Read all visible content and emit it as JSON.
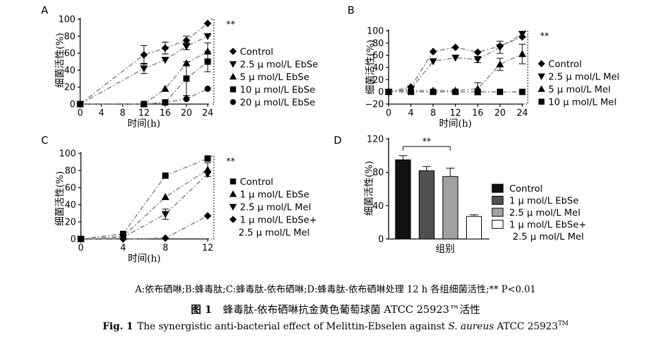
{
  "chart_data": [
    {
      "panel": "A",
      "type": "line",
      "xlabel": "时间(h)",
      "ylabel": "细菌活性(%)",
      "xlim": [
        0,
        24
      ],
      "ylim": [
        0,
        100
      ],
      "xticks": [
        0,
        4,
        8,
        12,
        16,
        20,
        24
      ],
      "yticks": [
        0,
        20,
        40,
        60,
        80,
        100
      ],
      "significance": "**",
      "legend_position": "right",
      "series": [
        {
          "name": "Control",
          "marker": "diamond",
          "x": [
            0,
            12,
            16,
            20,
            24
          ],
          "y": [
            0,
            58,
            66,
            75,
            95
          ],
          "err": [
            0,
            11,
            7,
            5,
            0
          ]
        },
        {
          "name": "2.5 μ mol/L EbSe",
          "marker": "triangle-down",
          "x": [
            0,
            12,
            16,
            20,
            24
          ],
          "y": [
            0,
            42,
            52,
            68,
            80
          ],
          "err": [
            0,
            6,
            0,
            4,
            0
          ]
        },
        {
          "name": "5 μ mol/L EbSe",
          "marker": "triangle-up",
          "x": [
            0,
            12,
            16,
            20,
            24
          ],
          "y": [
            0,
            0,
            18,
            48,
            62
          ],
          "err": [
            0,
            0,
            0,
            0,
            10
          ]
        },
        {
          "name": "10 μ mol/L EbSe",
          "marker": "square",
          "x": [
            0,
            12,
            16,
            20,
            24
          ],
          "y": [
            0,
            0,
            2,
            30,
            50
          ],
          "err": [
            0,
            0,
            0,
            20,
            12
          ]
        },
        {
          "name": "20 μ mol/L EbSe",
          "marker": "circle",
          "x": [
            0,
            12,
            16,
            20,
            24
          ],
          "y": [
            0,
            0,
            2,
            6,
            18
          ],
          "err": [
            0,
            0,
            0,
            0,
            0
          ]
        }
      ]
    },
    {
      "panel": "B",
      "type": "line",
      "xlabel": "时间(h)",
      "ylabel": "细菌活性(%)",
      "xlim": [
        0,
        24
      ],
      "ylim": [
        -20,
        100
      ],
      "xticks": [
        0,
        4,
        8,
        12,
        16,
        20,
        24
      ],
      "yticks": [
        -20,
        0,
        20,
        40,
        60,
        80,
        100
      ],
      "significance": "**",
      "legend_position": "right",
      "series": [
        {
          "name": "Control",
          "marker": "diamond",
          "x": [
            0,
            4,
            8,
            12,
            16,
            20,
            24
          ],
          "y": [
            0,
            8,
            66,
            73,
            65,
            75,
            90
          ],
          "err": [
            0,
            0,
            0,
            0,
            0,
            0,
            0
          ]
        },
        {
          "name": "2.5 μ mol/L Mel",
          "marker": "triangle-down",
          "x": [
            0,
            4,
            8,
            12,
            16,
            20,
            24
          ],
          "y": [
            0,
            5,
            50,
            56,
            53,
            73,
            95
          ],
          "err": [
            0,
            0,
            0,
            0,
            5,
            10,
            0
          ]
        },
        {
          "name": "5 μ mol/L Mel",
          "marker": "triangle-up",
          "x": [
            0,
            4,
            8,
            12,
            16,
            20,
            24
          ],
          "y": [
            0,
            2,
            2,
            2,
            5,
            45,
            62
          ],
          "err": [
            0,
            0,
            0,
            0,
            10,
            10,
            16
          ]
        },
        {
          "name": "10 μ mol/L Mel",
          "marker": "square",
          "x": [
            0,
            4,
            8,
            12,
            16,
            20,
            24
          ],
          "y": [
            0,
            0,
            0,
            0,
            0,
            0,
            0
          ],
          "err": [
            0,
            0,
            0,
            0,
            0,
            0,
            0
          ]
        }
      ]
    },
    {
      "panel": "C",
      "type": "line",
      "xlabel": "时间(h)",
      "ylabel": "细菌活性(%)",
      "xlim": [
        0,
        12
      ],
      "ylim": [
        0,
        100
      ],
      "xticks": [
        0,
        4,
        8,
        12
      ],
      "yticks": [
        0,
        20,
        40,
        60,
        80,
        100
      ],
      "significance": "**",
      "legend_position": "right",
      "series": [
        {
          "name": "Control",
          "marker": "square",
          "x": [
            0,
            4,
            8,
            12
          ],
          "y": [
            0,
            6,
            74,
            94
          ],
          "err": [
            0,
            0,
            0,
            0
          ]
        },
        {
          "name": "1 μ mol/L EbSe",
          "marker": "triangle-up",
          "x": [
            0,
            4,
            8,
            12
          ],
          "y": [
            0,
            3,
            49,
            81
          ],
          "err": [
            0,
            0,
            0,
            8
          ]
        },
        {
          "name": "2.5 μ mol/L Mel",
          "marker": "triangle-down",
          "x": [
            0,
            4,
            8,
            12
          ],
          "y": [
            0,
            2,
            29,
            76
          ],
          "err": [
            0,
            0,
            6,
            0
          ]
        },
        {
          "name": "1 μ mol/L EbSe+ 2.5 μ mol/L Mel",
          "marker": "diamond",
          "x": [
            0,
            4,
            8,
            12
          ],
          "y": [
            0,
            0,
            1,
            27
          ],
          "err": [
            0,
            0,
            0,
            0
          ]
        }
      ]
    },
    {
      "panel": "D",
      "type": "bar",
      "xlabel": "组别",
      "ylabel": "细菌活性(%)",
      "ylim": [
        0,
        120
      ],
      "yticks": [
        0,
        40,
        80,
        120
      ],
      "significance": "**",
      "legend_position": "right",
      "categories": [
        "Control",
        "1 μ mol/L EbSe",
        "2.5 μ mol/L Mel",
        "1 μ mol/L EbSe+ 2.5 μ mol/L Mel"
      ],
      "values": [
        95,
        82,
        75,
        27
      ],
      "errors": [
        5,
        5,
        10,
        2
      ],
      "colors": [
        "#111111",
        "#505050",
        "#a0a0a0",
        "#ffffff"
      ]
    }
  ],
  "captions": {
    "note": "A:依布硒啉;B:蜂毒肽;C:蜂毒肽-依布硒啉;D:蜂毒肽-依布硒啉处理 12 h 各组细菌活性;** P<0.01",
    "cn_label": "图 1",
    "cn_text": "蜂毒肽-依布硒啉抗金黄色葡萄球菌 ATCC 25923™活性",
    "en_label": "Fig. 1",
    "en_text_1": "The synergistic anti-bacterial effect of Melittin-Ebselen against ",
    "en_species": "S. aureus",
    "en_text_2": " ATCC 25923",
    "tm": "TM"
  }
}
